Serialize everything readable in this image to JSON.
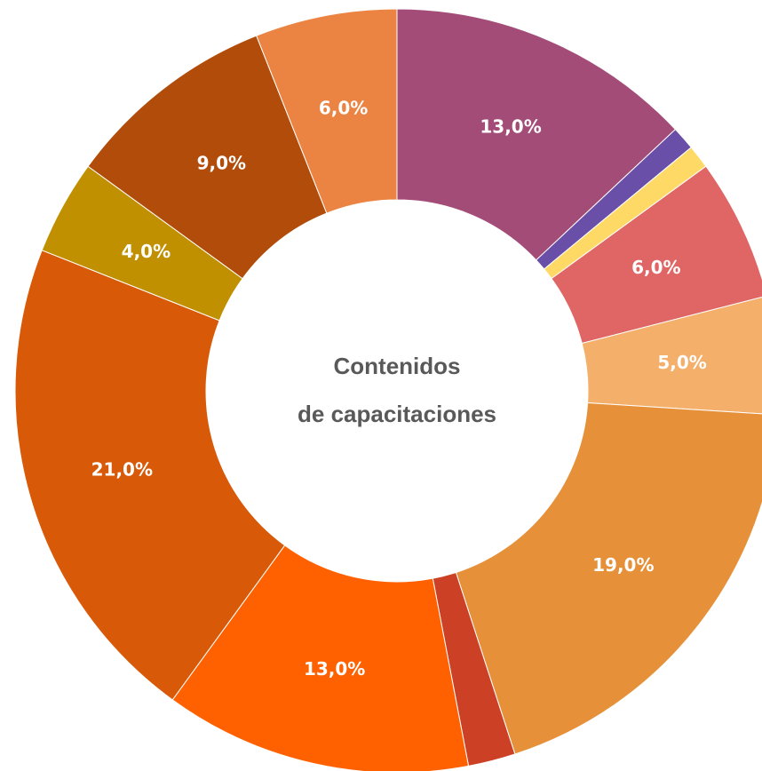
{
  "chart_data": {
    "type": "donut",
    "center_label": [
      "Contenidos",
      "de capacitaciones"
    ],
    "categories": [
      null,
      null,
      null,
      null,
      null,
      null,
      null,
      null,
      null,
      null,
      null,
      null
    ],
    "values": [
      13,
      1,
      1,
      6,
      5,
      19,
      2,
      13,
      21,
      4,
      9,
      6
    ],
    "value_labels": [
      "13,0%",
      null,
      null,
      "6,0%",
      "5,0%",
      "19,0%",
      null,
      "13,0%",
      "21,0%",
      "4,0%",
      "9,0%",
      "6,0%"
    ],
    "colors": [
      "#a34c78",
      "#6a4fa8",
      "#ffd966",
      "#e06666",
      "#f4b06b",
      "#e6913a",
      "#cc4125",
      "#ff6100",
      "#d85a08",
      "#c19000",
      "#b14c0a",
      "#eb8442"
    ]
  }
}
